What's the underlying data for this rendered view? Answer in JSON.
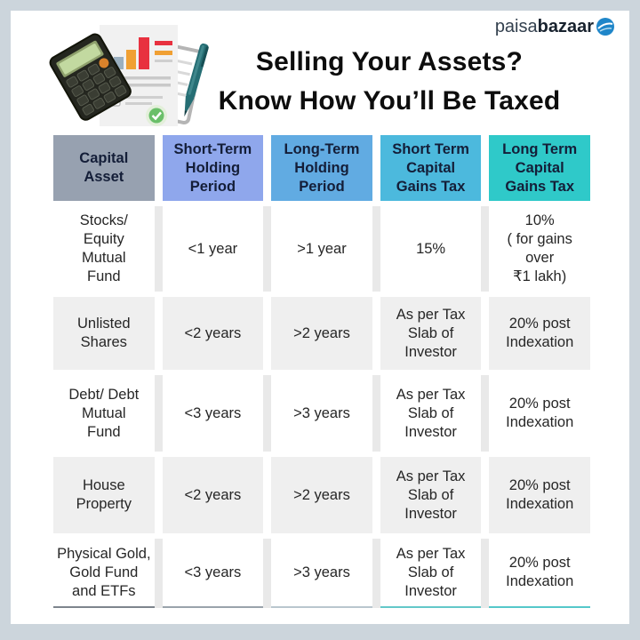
{
  "brand": {
    "name": "paisabazaar",
    "logo_light": "paisa",
    "logo_bold": "bazaar",
    "logo_circle_color": "#1f86c9"
  },
  "title": {
    "line1": "Selling Your Assets?",
    "line2": "Know How You’ll Be Taxed"
  },
  "icons": {
    "illustration": "calculator-document-pen-illustration",
    "logo_globe": "paisabazaar-globe-icon"
  },
  "colors": {
    "frame": "#ccd5dc",
    "header_text": "#141e38",
    "shaded_row_bg": "#efefef",
    "white_row_gap": "#e9e9e9"
  },
  "table": {
    "headers": [
      {
        "label": [
          "Capital",
          "Asset"
        ],
        "bg": "#97a1b0"
      },
      {
        "label": [
          "Short-Term",
          "Holding",
          "Period"
        ],
        "bg": "#8fa7ec"
      },
      {
        "label": [
          "Long-Term",
          "Holding",
          "Period"
        ],
        "bg": "#61abe2"
      },
      {
        "label": [
          "Short Term",
          "Capital",
          "Gains Tax"
        ],
        "bg": "#4cb9dd"
      },
      {
        "label": [
          "Long Term",
          "Capital",
          "Gains Tax"
        ],
        "bg": "#2fc9c9"
      }
    ],
    "underline_colors": [
      "#7e858d",
      "#9aa3ab",
      "#b9c6ce",
      "#63c8c9",
      "#55c8ca"
    ],
    "rows": [
      {
        "shaded": false,
        "min_height": 92,
        "cells": [
          [
            "Stocks/",
            "Equity",
            "Mutual",
            "Fund"
          ],
          "<1 year",
          ">1 year",
          "15%",
          [
            "10%",
            "( for gains",
            "over",
            "₹1 lakh)"
          ]
        ]
      },
      {
        "shaded": true,
        "min_height": 82,
        "cells": [
          [
            "Unlisted",
            "Shares"
          ],
          "<2 years",
          ">2 years",
          [
            "As per Tax",
            "Slab of",
            "Investor"
          ],
          [
            "20% post",
            "Indexation"
          ]
        ]
      },
      {
        "shaded": false,
        "min_height": 86,
        "cells": [
          [
            "Debt/ Debt",
            "Mutual",
            "Fund"
          ],
          "<3 years",
          ">3 years",
          [
            "As per Tax",
            "Slab of",
            "Investor"
          ],
          [
            "20% post",
            "Indexation"
          ]
        ]
      },
      {
        "shaded": true,
        "min_height": 86,
        "cells": [
          [
            "House",
            "Property"
          ],
          "<2 years",
          ">2 years",
          [
            "As per Tax",
            "Slab of",
            "Investor"
          ],
          [
            "20% post",
            "Indexation"
          ]
        ]
      },
      {
        "shaded": false,
        "min_height": 78,
        "cells": [
          [
            "Physical Gold,",
            "Gold Fund",
            "and ETFs"
          ],
          "<3 years",
          ">3 years",
          [
            "As per Tax",
            "Slab of",
            "Investor"
          ],
          [
            "20% post",
            "Indexation"
          ]
        ]
      }
    ]
  }
}
